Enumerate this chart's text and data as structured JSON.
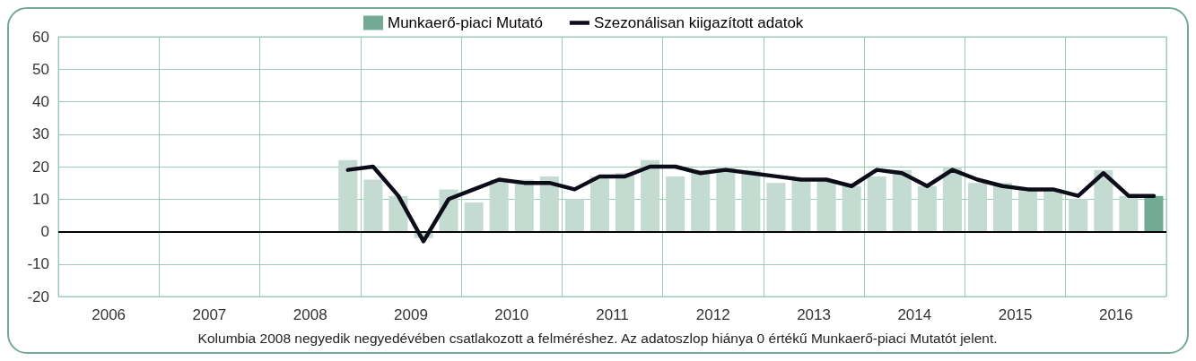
{
  "chart_data": {
    "type": "bar",
    "x": [
      2008.875,
      2009.125,
      2009.375,
      2009.625,
      2009.875,
      2010.125,
      2010.375,
      2010.625,
      2010.875,
      2011.125,
      2011.375,
      2011.625,
      2011.875,
      2012.125,
      2012.375,
      2012.625,
      2012.875,
      2013.125,
      2013.375,
      2013.625,
      2013.875,
      2014.125,
      2014.375,
      2014.625,
      2014.875,
      2015.125,
      2015.375,
      2015.625,
      2015.875,
      2016.125,
      2016.375,
      2016.625,
      2016.875
    ],
    "series": [
      {
        "name": "Munkaerő-piaci Mutató",
        "color": "#72aa94",
        "colors": [
          "#c4dbd2",
          "#c4dbd2",
          "#c4dbd2",
          "#c4dbd2",
          "#c4dbd2",
          "#c4dbd2",
          "#c4dbd2",
          "#c4dbd2",
          "#c4dbd2",
          "#c4dbd2",
          "#c4dbd2",
          "#c4dbd2",
          "#c4dbd2",
          "#c4dbd2",
          "#c4dbd2",
          "#c4dbd2",
          "#c4dbd2",
          "#c4dbd2",
          "#c4dbd2",
          "#c4dbd2",
          "#c4dbd2",
          "#c4dbd2",
          "#c4dbd2",
          "#c4dbd2",
          "#c4dbd2",
          "#c4dbd2",
          "#c4dbd2",
          "#c4dbd2",
          "#c4dbd2",
          "#c4dbd2",
          "#c4dbd2",
          "#c4dbd2",
          "#72aa94"
        ],
        "values": [
          22,
          16,
          11,
          -2,
          13,
          9,
          16,
          16,
          17,
          10,
          17,
          18,
          22,
          17,
          19,
          20,
          19,
          15,
          16,
          16,
          14,
          17,
          19,
          14,
          20,
          15,
          15,
          13,
          13,
          10,
          19,
          11,
          11
        ]
      },
      {
        "name": "Szezonálisan kiigazított adatok",
        "type": "line",
        "color": "#0d0d1a",
        "values": [
          19,
          20,
          11,
          -3,
          10,
          13,
          16,
          15,
          15,
          13,
          17,
          17,
          20,
          20,
          18,
          19,
          18,
          17,
          16,
          16,
          14,
          19,
          18,
          14,
          19,
          16,
          14,
          13,
          13,
          11,
          18,
          11,
          11
        ]
      }
    ],
    "xlim": [
      2006,
      2017
    ],
    "xticks": [
      {
        "value": 2006,
        "label": null
      },
      {
        "value": 2006.5,
        "label": "2006"
      },
      {
        "value": 2007,
        "label": null
      },
      {
        "value": 2007.5,
        "label": "2007"
      },
      {
        "value": 2008,
        "label": null
      },
      {
        "value": 2008.5,
        "label": "2008"
      },
      {
        "value": 2009,
        "label": null
      },
      {
        "value": 2009.5,
        "label": "2009"
      },
      {
        "value": 2010,
        "label": null
      },
      {
        "value": 2010.5,
        "label": "2010"
      },
      {
        "value": 2011,
        "label": null
      },
      {
        "value": 2011.5,
        "label": "2011"
      },
      {
        "value": 2012,
        "label": null
      },
      {
        "value": 2012.5,
        "label": "2012"
      },
      {
        "value": 2013,
        "label": null
      },
      {
        "value": 2013.5,
        "label": "2013"
      },
      {
        "value": 2014,
        "label": null
      },
      {
        "value": 2014.5,
        "label": "2014"
      },
      {
        "value": 2015,
        "label": null
      },
      {
        "value": 2015.5,
        "label": "2015"
      },
      {
        "value": 2016,
        "label": null
      },
      {
        "value": 2016.5,
        "label": "2016"
      },
      {
        "value": 2017,
        "label": null
      }
    ],
    "ylim": [
      -20,
      60
    ],
    "yticks": [
      -20,
      -10,
      0,
      10,
      20,
      30,
      40,
      50,
      60
    ],
    "ref_lines": [
      {
        "axis": "y",
        "value": 0,
        "label": null,
        "color": "#000000"
      }
    ],
    "grid": true,
    "legend": "top",
    "marker": "none",
    "line_style": "solid",
    "annotations": [
      "Kolumbia 2008 negyedik negyedévében csatlakozott a felméréshez. Az adatoszlop hiánya 0 értékű Munkaerő-piaci Mutatót jelent."
    ]
  }
}
